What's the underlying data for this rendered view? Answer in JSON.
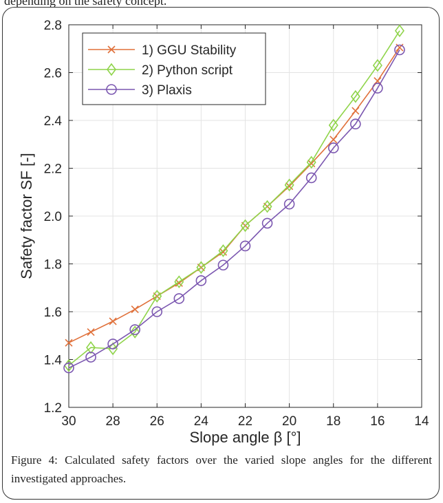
{
  "top_fragment": "depending on the safety concept.",
  "caption": "Figure 4: Calculated safety factors over the varied slope angles for the different investigated approaches.",
  "chart_data": {
    "type": "line",
    "title": "",
    "xlabel": "Slope angle β [°]",
    "ylabel": "Safety factor SF [-]",
    "xlim": [
      30,
      14
    ],
    "ylim": [
      1.2,
      2.8
    ],
    "xticks": [
      "30",
      "28",
      "26",
      "24",
      "22",
      "20",
      "18",
      "16",
      "14"
    ],
    "yticks": [
      "1.2",
      "1.4",
      "1.6",
      "1.8",
      "2.0",
      "2.2",
      "2.4",
      "2.6",
      "2.8"
    ],
    "x_reversed": true,
    "grid": true,
    "legend_position": "top-left",
    "x": [
      30,
      29,
      28,
      27,
      26,
      25,
      24,
      23,
      22,
      21,
      20,
      19,
      18,
      17,
      16,
      15
    ],
    "series": [
      {
        "name": "1)   GGU Stability",
        "marker": "x",
        "color": "#e0703a",
        "values": [
          1.47,
          1.515,
          1.56,
          1.61,
          1.665,
          1.72,
          1.785,
          1.85,
          1.96,
          2.04,
          2.125,
          2.22,
          2.32,
          2.44,
          2.565,
          2.705
        ]
      },
      {
        "name": "2)   Python script",
        "marker": "diamond",
        "color": "#8fd44a",
        "values": [
          1.375,
          1.45,
          1.445,
          1.515,
          1.665,
          1.725,
          1.785,
          1.855,
          1.96,
          2.04,
          2.13,
          2.225,
          2.38,
          2.5,
          2.63,
          2.775
        ]
      },
      {
        "name": "3)   Plaxis",
        "marker": "circle",
        "color": "#7b57b0",
        "values": [
          1.365,
          1.41,
          1.465,
          1.525,
          1.6,
          1.655,
          1.73,
          1.795,
          1.875,
          1.97,
          2.05,
          2.16,
          2.285,
          2.385,
          2.535,
          2.695
        ]
      }
    ]
  }
}
